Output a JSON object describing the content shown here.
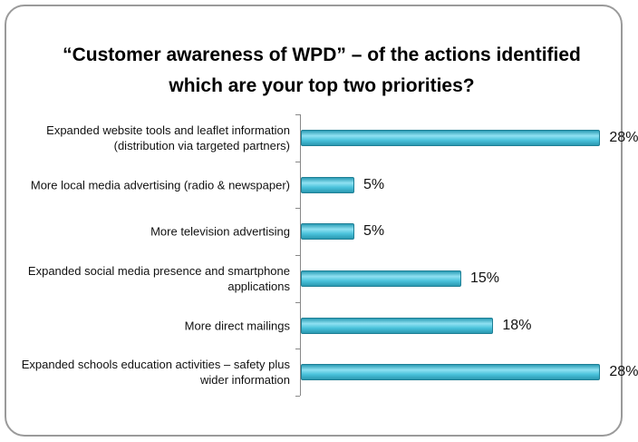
{
  "chart_data": {
    "type": "bar",
    "orientation": "horizontal",
    "title": "“Customer awareness of WPD” – of the actions identified which are your top two priorities?",
    "categories": [
      "Expanded website tools and leaflet information (distribution via targeted partners)",
      "More local media advertising (radio & newspaper)",
      "More television advertising",
      "Expanded social media presence and smartphone applications",
      "More direct mailings",
      "Expanded schools education activities – safety plus wider information"
    ],
    "values": [
      28,
      5,
      5,
      15,
      18,
      28
    ],
    "value_labels": [
      "28%",
      "5%",
      "5%",
      "15%",
      "18%",
      "28%"
    ],
    "color": "#4bc3dc",
    "xlim": [
      0,
      30
    ]
  }
}
